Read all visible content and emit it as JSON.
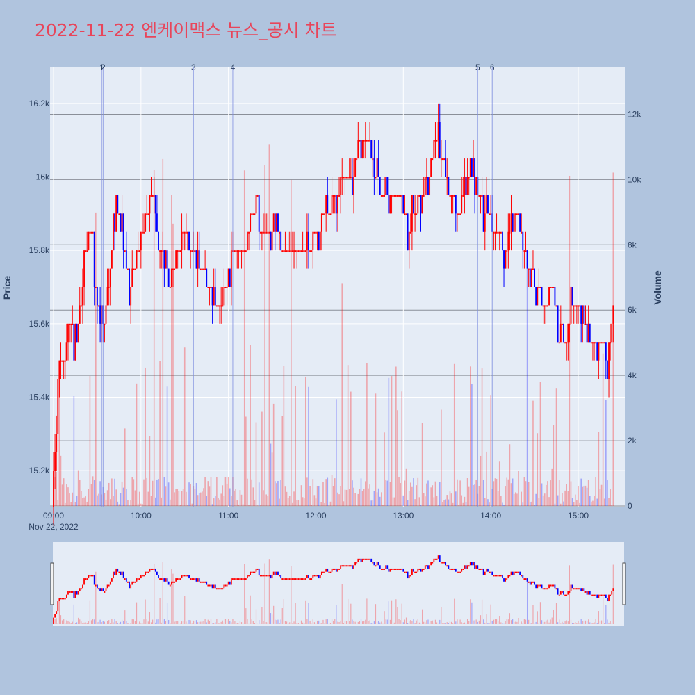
{
  "title": "2022-11-22 엔케이맥스 뉴스_공시 차트",
  "colors": {
    "up": "#ff0000",
    "down": "#0000ff",
    "title": "#e8455a",
    "plot_bg": "#e5ecf6",
    "page_bg": "#b0c4de"
  },
  "chart_data": {
    "type": "candlestick",
    "title": "2022-11-22 엔케이맥스 뉴스_공시 차트",
    "xlabel": "",
    "ylabel": "Price",
    "y2label": "Volume",
    "date_label": "Nov 22, 2022",
    "xlim": [
      "09:00",
      "15:31"
    ],
    "ylim": [
      15100,
      16300
    ],
    "y2lim": [
      0,
      13500
    ],
    "x_ticks": [
      "09:00",
      "10:00",
      "11:00",
      "12:00",
      "13:00",
      "14:00",
      "15:00"
    ],
    "y_ticks": [
      "15.2k",
      "15.4k",
      "15.6k",
      "15.8k",
      "16k",
      "16.2k"
    ],
    "y2_ticks": [
      "0",
      "2k",
      "4k",
      "6k",
      "8k",
      "10k",
      "12k"
    ],
    "grid": true,
    "news_markers": [
      {
        "label": "1",
        "time": "09:33"
      },
      {
        "label": "2",
        "time": "09:34"
      },
      {
        "label": "3",
        "time": "10:36"
      },
      {
        "label": "4",
        "time": "11:03"
      },
      {
        "label": "5",
        "time": "13:51"
      },
      {
        "label": "6",
        "time": "14:01"
      }
    ],
    "price_path": [
      [
        "09:00",
        15150
      ],
      [
        "09:02",
        15300
      ],
      [
        "09:04",
        15450
      ],
      [
        "09:08",
        15500
      ],
      [
        "09:10",
        15600
      ],
      [
        "09:16",
        15550
      ],
      [
        "09:20",
        15700
      ],
      [
        "09:22",
        15800
      ],
      [
        "09:26",
        15850
      ],
      [
        "09:28",
        15700
      ],
      [
        "09:31",
        15650
      ],
      [
        "09:35",
        15600
      ],
      [
        "09:40",
        15800
      ],
      [
        "09:44",
        15900
      ],
      [
        "09:48",
        15800
      ],
      [
        "09:52",
        15700
      ],
      [
        "09:58",
        15800
      ],
      [
        "10:04",
        15900
      ],
      [
        "10:08",
        15950
      ],
      [
        "10:12",
        15800
      ],
      [
        "10:16",
        15750
      ],
      [
        "10:20",
        15700
      ],
      [
        "10:25",
        15800
      ],
      [
        "10:30",
        15850
      ],
      [
        "10:36",
        15800
      ],
      [
        "10:42",
        15750
      ],
      [
        "10:48",
        15700
      ],
      [
        "10:55",
        15650
      ],
      [
        "11:00",
        15750
      ],
      [
        "11:06",
        15800
      ],
      [
        "11:12",
        15800
      ],
      [
        "11:16",
        15900
      ],
      [
        "11:24",
        15850
      ],
      [
        "11:30",
        15850
      ],
      [
        "11:40",
        15800
      ],
      [
        "11:50",
        15800
      ],
      [
        "11:55",
        15800
      ],
      [
        "12:00",
        15850
      ],
      [
        "12:08",
        15900
      ],
      [
        "12:14",
        15950
      ],
      [
        "12:20",
        16000
      ],
      [
        "12:26",
        16000
      ],
      [
        "12:30",
        16100
      ],
      [
        "12:36",
        16100
      ],
      [
        "12:40",
        16000
      ],
      [
        "12:46",
        15950
      ],
      [
        "12:52",
        15950
      ],
      [
        "12:56",
        15950
      ],
      [
        "13:00",
        15900
      ],
      [
        "13:04",
        15850
      ],
      [
        "13:08",
        15900
      ],
      [
        "13:12",
        15950
      ],
      [
        "13:18",
        16000
      ],
      [
        "13:22",
        16100
      ],
      [
        "13:26",
        16050
      ],
      [
        "13:32",
        15950
      ],
      [
        "13:38",
        15900
      ],
      [
        "13:42",
        15950
      ],
      [
        "13:46",
        16000
      ],
      [
        "13:50",
        15950
      ],
      [
        "13:56",
        15900
      ],
      [
        "14:04",
        15850
      ],
      [
        "14:10",
        15800
      ],
      [
        "14:18",
        15900
      ],
      [
        "14:22",
        15800
      ],
      [
        "14:26",
        15750
      ],
      [
        "14:30",
        15700
      ],
      [
        "14:38",
        15650
      ],
      [
        "14:42",
        15700
      ],
      [
        "14:46",
        15600
      ],
      [
        "14:52",
        15550
      ],
      [
        "14:56",
        15650
      ],
      [
        "15:04",
        15600
      ],
      [
        "15:10",
        15550
      ],
      [
        "15:16",
        15550
      ],
      [
        "15:20",
        15500
      ],
      [
        "15:24",
        15600
      ]
    ]
  }
}
